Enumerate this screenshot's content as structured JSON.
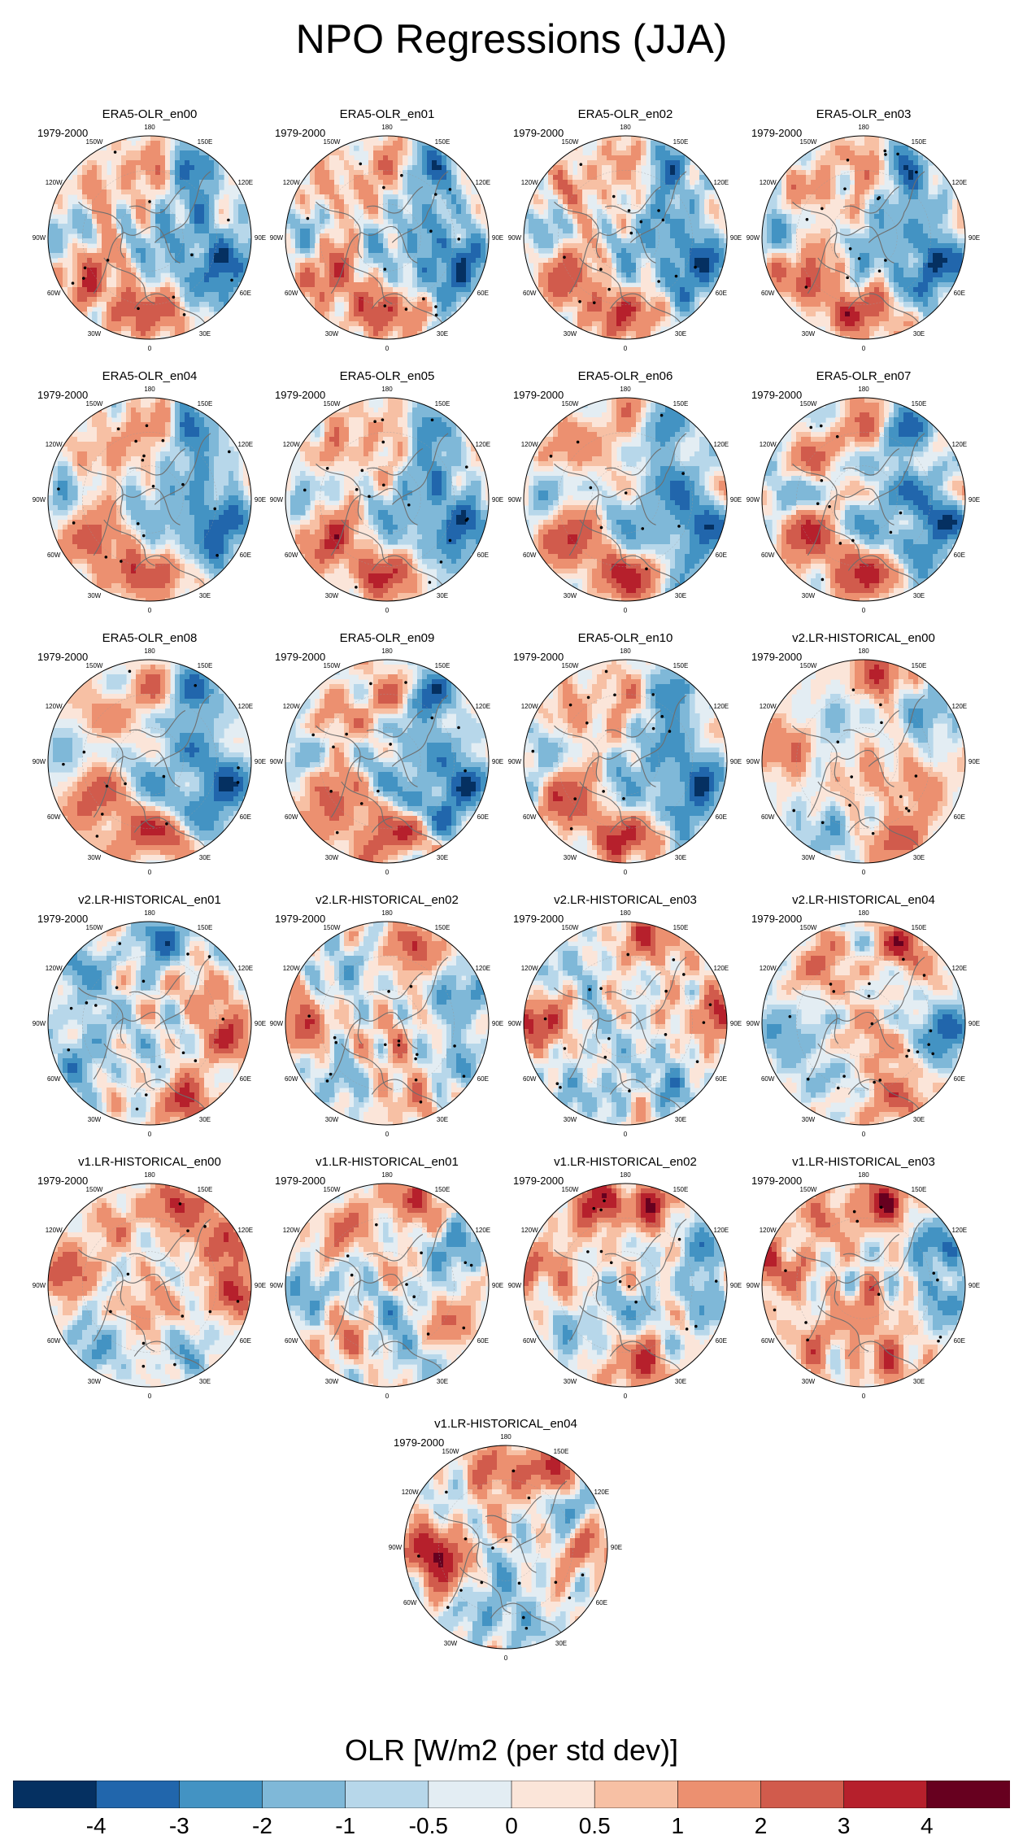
{
  "title": "NPO Regressions (JJA)",
  "colorbar": {
    "label": "OLR [W/m2 (per std dev)]",
    "colors": [
      "#053061",
      "#2166ac",
      "#4393c3",
      "#7fb8d8",
      "#b7d7ea",
      "#e3edf3",
      "#fbe5d9",
      "#f7c0a4",
      "#ec9070",
      "#d15b4c",
      "#b6202c",
      "#67001f"
    ],
    "tick_labels": [
      "-4",
      "-3",
      "-2",
      "-1",
      "-0.5",
      "0",
      "0.5",
      "1",
      "2",
      "3",
      "4"
    ]
  },
  "map_labels": {
    "lon_top": "180",
    "lon_bottom": "0",
    "lon_upper_left": "150W",
    "lon_upper_right": "150E",
    "lon_left_upper": "120W",
    "lon_right_upper": "120E",
    "lon_left": "90W",
    "lon_right": "90E",
    "lon_left_lower": "60W",
    "lon_right_lower": "60E",
    "lon_lower_left": "30W",
    "lon_lower_right": "30E"
  },
  "chart_data": {
    "type": "heatmap",
    "title": "NPO Regressions (JJA)",
    "variable": "OLR [W/m2 (per std dev)]",
    "projection": "polar stereographic, Northern Hemisphere",
    "period": "1979-2000",
    "levels": [
      -4,
      -3,
      -2,
      -1,
      -0.5,
      0,
      0.5,
      1,
      2,
      3,
      4
    ],
    "panels": [
      {
        "name": "ERA5-OLR_en00",
        "period": "1979-2000",
        "pattern": "era5"
      },
      {
        "name": "ERA5-OLR_en01",
        "period": "1979-2000",
        "pattern": "era5"
      },
      {
        "name": "ERA5-OLR_en02",
        "period": "1979-2000",
        "pattern": "era5"
      },
      {
        "name": "ERA5-OLR_en03",
        "period": "1979-2000",
        "pattern": "era5"
      },
      {
        "name": "ERA5-OLR_en04",
        "period": "1979-2000",
        "pattern": "era5"
      },
      {
        "name": "ERA5-OLR_en05",
        "period": "1979-2000",
        "pattern": "era5"
      },
      {
        "name": "ERA5-OLR_en06",
        "period": "1979-2000",
        "pattern": "era5"
      },
      {
        "name": "ERA5-OLR_en07",
        "period": "1979-2000",
        "pattern": "era5"
      },
      {
        "name": "ERA5-OLR_en08",
        "period": "1979-2000",
        "pattern": "era5"
      },
      {
        "name": "ERA5-OLR_en09",
        "period": "1979-2000",
        "pattern": "era5"
      },
      {
        "name": "ERA5-OLR_en10",
        "period": "1979-2000",
        "pattern": "era5"
      },
      {
        "name": "v2.LR-HISTORICAL_en00",
        "period": "1979-2000",
        "pattern": "v2_00"
      },
      {
        "name": "v2.LR-HISTORICAL_en01",
        "period": "1979-2000",
        "pattern": "v2_01"
      },
      {
        "name": "v2.LR-HISTORICAL_en02",
        "period": "1979-2000",
        "pattern": "v2_02"
      },
      {
        "name": "v2.LR-HISTORICAL_en03",
        "period": "1979-2000",
        "pattern": "v2_03"
      },
      {
        "name": "v2.LR-HISTORICAL_en04",
        "period": "1979-2000",
        "pattern": "v2_04"
      },
      {
        "name": "v1.LR-HISTORICAL_en00",
        "period": "1979-2000",
        "pattern": "v1_00"
      },
      {
        "name": "v1.LR-HISTORICAL_en01",
        "period": "1979-2000",
        "pattern": "v1_01"
      },
      {
        "name": "v1.LR-HISTORICAL_en02",
        "period": "1979-2000",
        "pattern": "v1_02"
      },
      {
        "name": "v1.LR-HISTORICAL_en03",
        "period": "1979-2000",
        "pattern": "v1_03"
      },
      {
        "name": "v1.LR-HISTORICAL_en04",
        "period": "1979-2000",
        "pattern": "v1_04"
      }
    ],
    "patterns": {
      "era5": [
        {
          "lon": 150,
          "r": 0.8,
          "v": -3.6
        },
        {
          "lon": 120,
          "r": 0.55,
          "v": -1.5
        },
        {
          "lon": 75,
          "r": 0.8,
          "v": -3.8
        },
        {
          "lon": 45,
          "r": 0.75,
          "v": -2.6
        },
        {
          "lon": 20,
          "r": 0.7,
          "v": 2.4
        },
        {
          "lon": -10,
          "r": 0.75,
          "v": 2.6
        },
        {
          "lon": -55,
          "r": 0.75,
          "v": 2.5
        },
        {
          "lon": -95,
          "r": 0.8,
          "v": -1.6
        },
        {
          "lon": -130,
          "r": 0.7,
          "v": 1.4
        },
        {
          "lon": 175,
          "r": 0.7,
          "v": 2.2
        },
        {
          "lon": 0,
          "r": 0.12,
          "v": -1.6
        },
        {
          "lon": 100,
          "r": 0.35,
          "v": -1.2
        },
        {
          "lon": -70,
          "r": 0.45,
          "v": 1.3
        },
        {
          "lon": 30,
          "r": 0.5,
          "v": -1.1
        }
      ],
      "v2_00": [
        {
          "lon": 170,
          "r": 0.85,
          "v": 3.2
        },
        {
          "lon": 130,
          "r": 0.8,
          "v": -2.4
        },
        {
          "lon": 25,
          "r": 0.85,
          "v": 2.8
        },
        {
          "lon": -30,
          "r": 0.75,
          "v": -1.8
        },
        {
          "lon": -100,
          "r": 0.75,
          "v": 2.1
        },
        {
          "lon": 70,
          "r": 0.6,
          "v": 1.6
        },
        {
          "lon": -150,
          "r": 0.55,
          "v": -1.4
        },
        {
          "lon": 0,
          "r": 0.2,
          "v": 1.2
        }
      ],
      "v2_01": [
        {
          "lon": 170,
          "r": 0.85,
          "v": -3.4
        },
        {
          "lon": -130,
          "r": 0.8,
          "v": -2.2
        },
        {
          "lon": 80,
          "r": 0.8,
          "v": 3.0
        },
        {
          "lon": 25,
          "r": 0.85,
          "v": 3.2
        },
        {
          "lon": -60,
          "r": 0.8,
          "v": -2.0
        },
        {
          "lon": -95,
          "r": 0.55,
          "v": -1.2
        },
        {
          "lon": 120,
          "r": 0.6,
          "v": 1.4
        },
        {
          "lon": 0,
          "r": 0.2,
          "v": -1.0
        }
      ],
      "v2_02": [
        {
          "lon": 160,
          "r": 0.8,
          "v": 2.8
        },
        {
          "lon": 110,
          "r": 0.75,
          "v": -2.4
        },
        {
          "lon": -90,
          "r": 0.85,
          "v": 3.0
        },
        {
          "lon": 60,
          "r": 0.8,
          "v": -1.8
        },
        {
          "lon": 20,
          "r": 0.75,
          "v": 1.6
        },
        {
          "lon": -40,
          "r": 0.7,
          "v": -1.6
        },
        {
          "lon": -140,
          "r": 0.65,
          "v": -1.4
        },
        {
          "lon": 0,
          "r": 0.2,
          "v": 1.2
        }
      ],
      "v2_03": [
        {
          "lon": 165,
          "r": 0.85,
          "v": 3.0
        },
        {
          "lon": -90,
          "r": 0.85,
          "v": 3.2
        },
        {
          "lon": 95,
          "r": 0.85,
          "v": 3.0
        },
        {
          "lon": 40,
          "r": 0.8,
          "v": -2.2
        },
        {
          "lon": -30,
          "r": 0.75,
          "v": -1.8
        },
        {
          "lon": -140,
          "r": 0.7,
          "v": -1.4
        },
        {
          "lon": 0,
          "r": 0.2,
          "v": -1.0
        }
      ],
      "v2_04": [
        {
          "lon": 155,
          "r": 0.85,
          "v": 3.2
        },
        {
          "lon": 85,
          "r": 0.85,
          "v": -3.6
        },
        {
          "lon": 20,
          "r": 0.8,
          "v": 2.6
        },
        {
          "lon": -85,
          "r": 0.85,
          "v": -2.6
        },
        {
          "lon": -40,
          "r": 0.7,
          "v": -1.6
        },
        {
          "lon": -140,
          "r": 0.7,
          "v": 1.8
        },
        {
          "lon": 0,
          "r": 0.25,
          "v": 1.2
        }
      ],
      "v1_00": [
        {
          "lon": 160,
          "r": 0.85,
          "v": 3.4
        },
        {
          "lon": 120,
          "r": 0.85,
          "v": 3.0
        },
        {
          "lon": 85,
          "r": 0.85,
          "v": 3.2
        },
        {
          "lon": -100,
          "r": 0.85,
          "v": 3.0
        },
        {
          "lon": -40,
          "r": 0.8,
          "v": -2.0
        },
        {
          "lon": 30,
          "r": 0.75,
          "v": -1.6
        },
        {
          "lon": -150,
          "r": 0.7,
          "v": 1.4
        },
        {
          "lon": 0,
          "r": 0.25,
          "v": 1.6
        }
      ],
      "v1_01": [
        {
          "lon": 165,
          "r": 0.85,
          "v": 3.0
        },
        {
          "lon": 120,
          "r": 0.8,
          "v": -2.6
        },
        {
          "lon": -85,
          "r": 0.8,
          "v": -2.2
        },
        {
          "lon": 60,
          "r": 0.8,
          "v": 1.8
        },
        {
          "lon": 20,
          "r": 0.75,
          "v": -1.4
        },
        {
          "lon": -40,
          "r": 0.75,
          "v": 1.6
        },
        {
          "lon": -140,
          "r": 0.7,
          "v": 1.8
        },
        {
          "lon": 0,
          "r": 0.2,
          "v": -1.2
        }
      ],
      "v1_02": [
        {
          "lon": -160,
          "r": 0.85,
          "v": 3.8
        },
        {
          "lon": 160,
          "r": 0.85,
          "v": 3.4
        },
        {
          "lon": 120,
          "r": 0.85,
          "v": -2.4
        },
        {
          "lon": 80,
          "r": 0.8,
          "v": -1.8
        },
        {
          "lon": -100,
          "r": 0.8,
          "v": 2.2
        },
        {
          "lon": 10,
          "r": 0.8,
          "v": 3.2
        },
        {
          "lon": -50,
          "r": 0.75,
          "v": -1.4
        },
        {
          "lon": 0,
          "r": 0.25,
          "v": -1.6
        }
      ],
      "v1_03": [
        {
          "lon": 165,
          "r": 0.85,
          "v": 3.8
        },
        {
          "lon": 120,
          "r": 0.8,
          "v": -3.0
        },
        {
          "lon": 80,
          "r": 0.85,
          "v": -2.4
        },
        {
          "lon": -100,
          "r": 0.85,
          "v": 2.8
        },
        {
          "lon": -150,
          "r": 0.75,
          "v": 2.0
        },
        {
          "lon": 20,
          "r": 0.8,
          "v": 2.4
        },
        {
          "lon": -40,
          "r": 0.75,
          "v": 1.8
        },
        {
          "lon": 0,
          "r": 0.25,
          "v": 2.0
        }
      ],
      "v1_04": [
        {
          "lon": 150,
          "r": 0.85,
          "v": 3.6
        },
        {
          "lon": -170,
          "r": 0.8,
          "v": 2.4
        },
        {
          "lon": -90,
          "r": 0.75,
          "v": 3.4
        },
        {
          "lon": -70,
          "r": 0.6,
          "v": 2.2
        },
        {
          "lon": 90,
          "r": 0.8,
          "v": 2.2
        },
        {
          "lon": 120,
          "r": 0.8,
          "v": -2.0
        },
        {
          "lon": 20,
          "r": 0.8,
          "v": -1.8
        },
        {
          "lon": -30,
          "r": 0.75,
          "v": -1.6
        },
        {
          "lon": 0,
          "r": 0.25,
          "v": -1.2
        }
      ]
    }
  }
}
